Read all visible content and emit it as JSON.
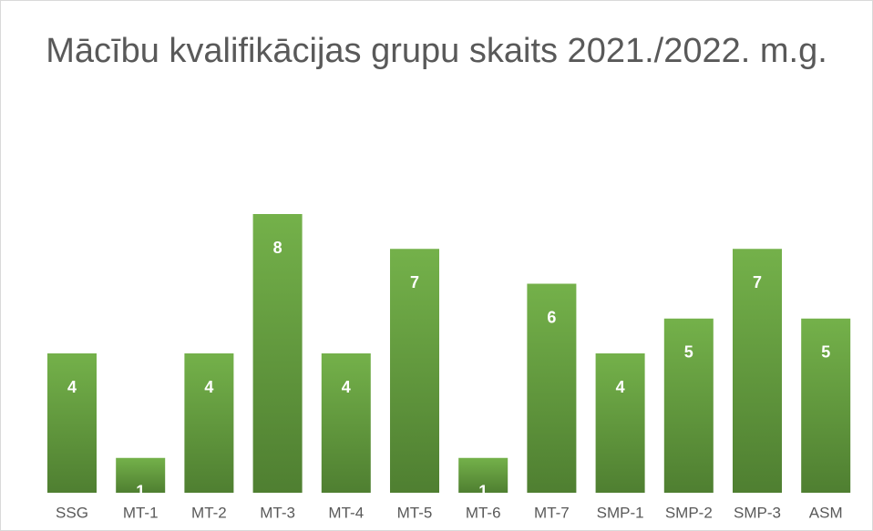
{
  "chart_data": {
    "type": "bar",
    "title": "Mācību kvalifikācijas grupu skaits 2021./2022. m.g.",
    "categories": [
      "SSG",
      "MT-1",
      "MT-2",
      "MT-3",
      "MT-4",
      "MT-5",
      "MT-6",
      "MT-7",
      "SMP-1",
      "SMP-2",
      "SMP-3",
      "ASM"
    ],
    "values": [
      4,
      1,
      4,
      8,
      4,
      7,
      1,
      6,
      4,
      5,
      7,
      5
    ],
    "color": "#70ad47"
  }
}
